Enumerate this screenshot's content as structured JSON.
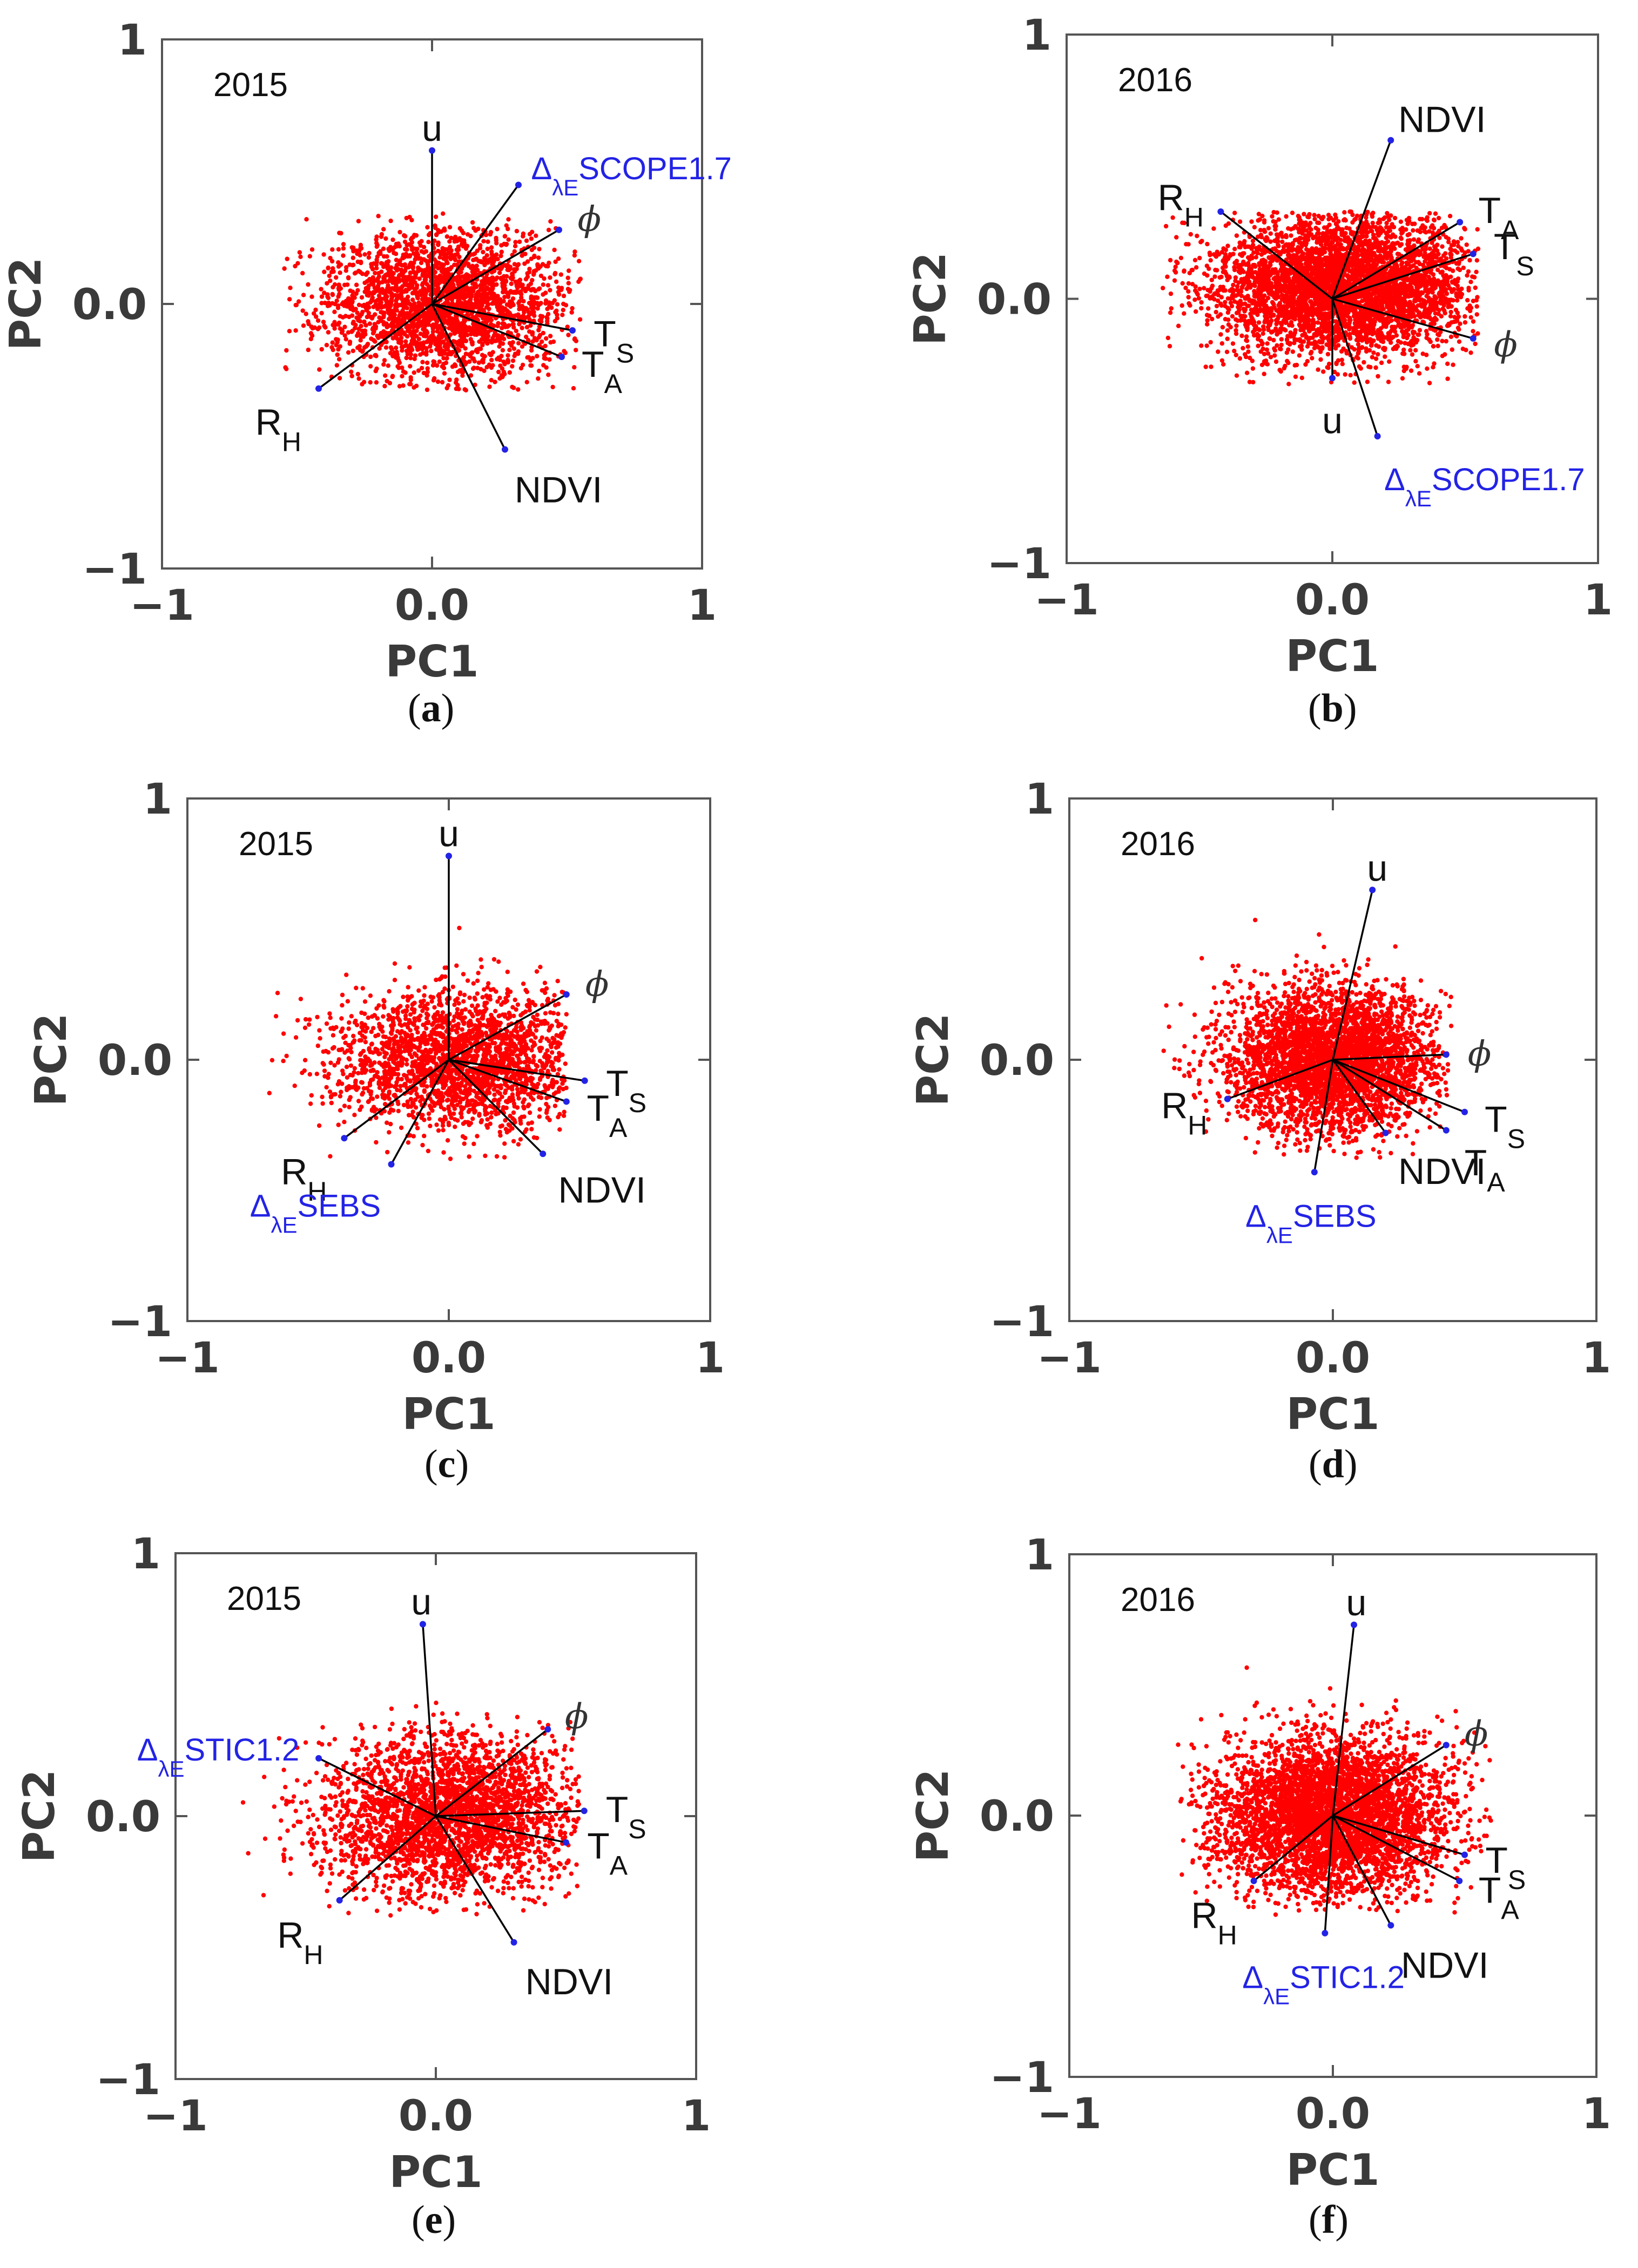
{
  "chart_data": [
    {
      "id": "a",
      "type": "scatter",
      "caption_letter": "a",
      "year": "2015",
      "xlabel": "PC1",
      "ylabel": "PC2",
      "xlim": [
        -1,
        1
      ],
      "ylim": [
        -1,
        1
      ],
      "x_ticks": [
        "−1",
        "0.0",
        "1"
      ],
      "y_ticks": [
        "1",
        "0.0",
        "−1"
      ],
      "points": {
        "color": "#ff0000",
        "count": 2600,
        "cx": 0.05,
        "cy": 0.0,
        "sx": 0.22,
        "sy": 0.14,
        "xmin": -0.55,
        "xmax": 0.55,
        "ymin": -0.33,
        "ymax": 0.35,
        "seed": 11
      },
      "vectors": [
        {
          "name": "u",
          "x": 0.0,
          "y": 0.58,
          "kind": "plain"
        },
        {
          "name": "Δ",
          "sub": "λE",
          "suffix": "SCOPE1.7",
          "x": 0.32,
          "y": 0.45,
          "kind": "delta"
        },
        {
          "name": "ϕ",
          "x": 0.47,
          "y": 0.28,
          "kind": "phi"
        },
        {
          "name": "T",
          "sub": "S",
          "x": 0.52,
          "y": -0.1,
          "kind": "plain"
        },
        {
          "name": "T",
          "sub": "A",
          "x": 0.48,
          "y": -0.2,
          "kind": "plain"
        },
        {
          "name": "NDVI",
          "x": 0.27,
          "y": -0.55,
          "kind": "plain"
        },
        {
          "name": "R",
          "sub": "H",
          "x": -0.42,
          "y": -0.32,
          "kind": "plain"
        }
      ]
    },
    {
      "id": "b",
      "type": "scatter",
      "caption_letter": "b",
      "year": "2016",
      "xlabel": "PC1",
      "ylabel": "PC2",
      "xlim": [
        -1,
        1
      ],
      "ylim": [
        -1,
        1
      ],
      "x_ticks": [
        "−1",
        "0.0",
        "1"
      ],
      "y_ticks": [
        "1",
        "0.0",
        "−1"
      ],
      "points": {
        "color": "#ff0000",
        "count": 4200,
        "cx": 0.05,
        "cy": 0.05,
        "sx": 0.24,
        "sy": 0.13,
        "xmin": -0.65,
        "xmax": 0.55,
        "ymin": -0.33,
        "ymax": 0.33,
        "seed": 22
      },
      "vectors": [
        {
          "name": "NDVI",
          "x": 0.22,
          "y": 0.6,
          "kind": "plain"
        },
        {
          "name": "R",
          "sub": "H",
          "x": -0.42,
          "y": 0.33,
          "kind": "plain"
        },
        {
          "name": "T",
          "sub": "A",
          "x": 0.48,
          "y": 0.29,
          "kind": "plain"
        },
        {
          "name": "T",
          "sub": "S",
          "x": 0.53,
          "y": 0.17,
          "kind": "plain"
        },
        {
          "name": "ϕ",
          "x": 0.53,
          "y": -0.15,
          "kind": "phi"
        },
        {
          "name": "u",
          "x": 0.0,
          "y": -0.3,
          "kind": "plain"
        },
        {
          "name": "Δ",
          "sub": "λE",
          "suffix": "SCOPE1.7",
          "x": 0.17,
          "y": -0.52,
          "kind": "delta"
        }
      ]
    },
    {
      "id": "c",
      "type": "scatter",
      "caption_letter": "c",
      "year": "2015",
      "xlabel": "PC1",
      "ylabel": "PC2",
      "xlim": [
        -1,
        1
      ],
      "ylim": [
        -1,
        1
      ],
      "x_ticks": [
        "−1",
        "0.0",
        "1"
      ],
      "y_ticks": [
        "1",
        "0.0",
        "−1"
      ],
      "points": {
        "color": "#ff0000",
        "count": 2200,
        "cx": 0.05,
        "cy": 0.0,
        "sx": 0.24,
        "sy": 0.13,
        "xmin": -0.75,
        "xmax": 0.45,
        "ymin": -0.38,
        "ymax": 0.55,
        "seed": 33
      },
      "vectors": [
        {
          "name": "u",
          "x": 0.0,
          "y": 0.78,
          "kind": "plain"
        },
        {
          "name": "ϕ",
          "x": 0.45,
          "y": 0.25,
          "kind": "phi"
        },
        {
          "name": "T",
          "sub": "S",
          "x": 0.52,
          "y": -0.08,
          "kind": "plain"
        },
        {
          "name": "T",
          "sub": "A",
          "x": 0.45,
          "y": -0.16,
          "kind": "plain"
        },
        {
          "name": "NDVI",
          "x": 0.36,
          "y": -0.36,
          "kind": "plain"
        },
        {
          "name": "R",
          "sub": "H",
          "x": -0.4,
          "y": -0.3,
          "kind": "plain"
        },
        {
          "name": "Δ",
          "sub": "λE",
          "suffix": "SEBS",
          "x": -0.22,
          "y": -0.4,
          "kind": "delta"
        }
      ]
    },
    {
      "id": "d",
      "type": "scatter",
      "caption_letter": "d",
      "year": "2016",
      "xlabel": "PC1",
      "ylabel": "PC2",
      "xlim": [
        -1,
        1
      ],
      "ylim": [
        -1,
        1
      ],
      "x_ticks": [
        "−1",
        "0.0",
        "1"
      ],
      "y_ticks": [
        "1",
        "0.0",
        "−1"
      ],
      "points": {
        "color": "#ff0000",
        "count": 3600,
        "cx": 0.0,
        "cy": 0.0,
        "sx": 0.2,
        "sy": 0.14,
        "xmin": -0.65,
        "xmax": 0.45,
        "ymin": -0.38,
        "ymax": 0.55,
        "seed": 44
      },
      "vectors": [
        {
          "name": "u",
          "x": 0.15,
          "y": 0.65,
          "kind": "plain"
        },
        {
          "name": "ϕ",
          "x": 0.43,
          "y": 0.02,
          "kind": "phi"
        },
        {
          "name": "T",
          "sub": "S",
          "x": 0.5,
          "y": -0.2,
          "kind": "plain"
        },
        {
          "name": "T",
          "sub": "A",
          "x": 0.43,
          "y": -0.27,
          "kind": "plain"
        },
        {
          "name": "NDVI",
          "x": 0.2,
          "y": -0.28,
          "kind": "plain"
        },
        {
          "name": "R",
          "sub": "H",
          "x": -0.4,
          "y": -0.15,
          "kind": "plain"
        },
        {
          "name": "Δ",
          "sub": "λE",
          "suffix": "SEBS",
          "x": -0.07,
          "y": -0.43,
          "kind": "delta"
        }
      ]
    },
    {
      "id": "e",
      "type": "scatter",
      "caption_letter": "e",
      "year": "2015",
      "xlabel": "PC1",
      "ylabel": "PC2",
      "xlim": [
        -1,
        1
      ],
      "ylim": [
        -1,
        1
      ],
      "x_ticks": [
        "−1",
        "0.0",
        "1"
      ],
      "y_ticks": [
        "1",
        "0.0",
        "−1"
      ],
      "points": {
        "color": "#ff0000",
        "count": 2800,
        "cx": 0.05,
        "cy": 0.0,
        "sx": 0.24,
        "sy": 0.15,
        "xmin": -0.75,
        "xmax": 0.55,
        "ymin": -0.38,
        "ymax": 0.45,
        "seed": 55
      },
      "vectors": [
        {
          "name": "u",
          "x": -0.05,
          "y": 0.73,
          "kind": "plain"
        },
        {
          "name": "ϕ",
          "x": 0.43,
          "y": 0.33,
          "kind": "phi"
        },
        {
          "name": "T",
          "sub": "S",
          "x": 0.57,
          "y": 0.02,
          "kind": "plain"
        },
        {
          "name": "T",
          "sub": "A",
          "x": 0.5,
          "y": -0.1,
          "kind": "plain"
        },
        {
          "name": "NDVI",
          "x": 0.3,
          "y": -0.48,
          "kind": "plain"
        },
        {
          "name": "R",
          "sub": "H",
          "x": -0.37,
          "y": -0.32,
          "kind": "plain"
        },
        {
          "name": "Δ",
          "sub": "λE",
          "suffix": "STIC1.2",
          "x": -0.45,
          "y": 0.22,
          "kind": "delta"
        }
      ]
    },
    {
      "id": "f",
      "type": "scatter",
      "caption_letter": "f",
      "year": "2016",
      "xlabel": "PC1",
      "ylabel": "PC2",
      "xlim": [
        -1,
        1
      ],
      "ylim": [
        -1,
        1
      ],
      "x_ticks": [
        "−1",
        "0.0",
        "1"
      ],
      "y_ticks": [
        "1",
        "0.0",
        "−1"
      ],
      "points": {
        "color": "#ff0000",
        "count": 4200,
        "cx": 0.0,
        "cy": 0.0,
        "sx": 0.22,
        "sy": 0.15,
        "xmin": -0.6,
        "xmax": 0.6,
        "ymin": -0.38,
        "ymax": 0.62,
        "seed": 66
      },
      "vectors": [
        {
          "name": "u",
          "x": 0.08,
          "y": 0.73,
          "kind": "plain"
        },
        {
          "name": "ϕ",
          "x": 0.43,
          "y": 0.27,
          "kind": "phi"
        },
        {
          "name": "T",
          "sub": "S",
          "x": 0.5,
          "y": -0.15,
          "kind": "plain"
        },
        {
          "name": "T",
          "sub": "A",
          "x": 0.48,
          "y": -0.25,
          "kind": "plain"
        },
        {
          "name": "NDVI",
          "x": 0.22,
          "y": -0.42,
          "kind": "plain"
        },
        {
          "name": "R",
          "sub": "H",
          "x": -0.3,
          "y": -0.25,
          "kind": "plain"
        },
        {
          "name": "Δ",
          "sub": "λE",
          "suffix": "STIC1.2",
          "x": -0.03,
          "y": -0.45,
          "kind": "delta"
        }
      ]
    }
  ]
}
